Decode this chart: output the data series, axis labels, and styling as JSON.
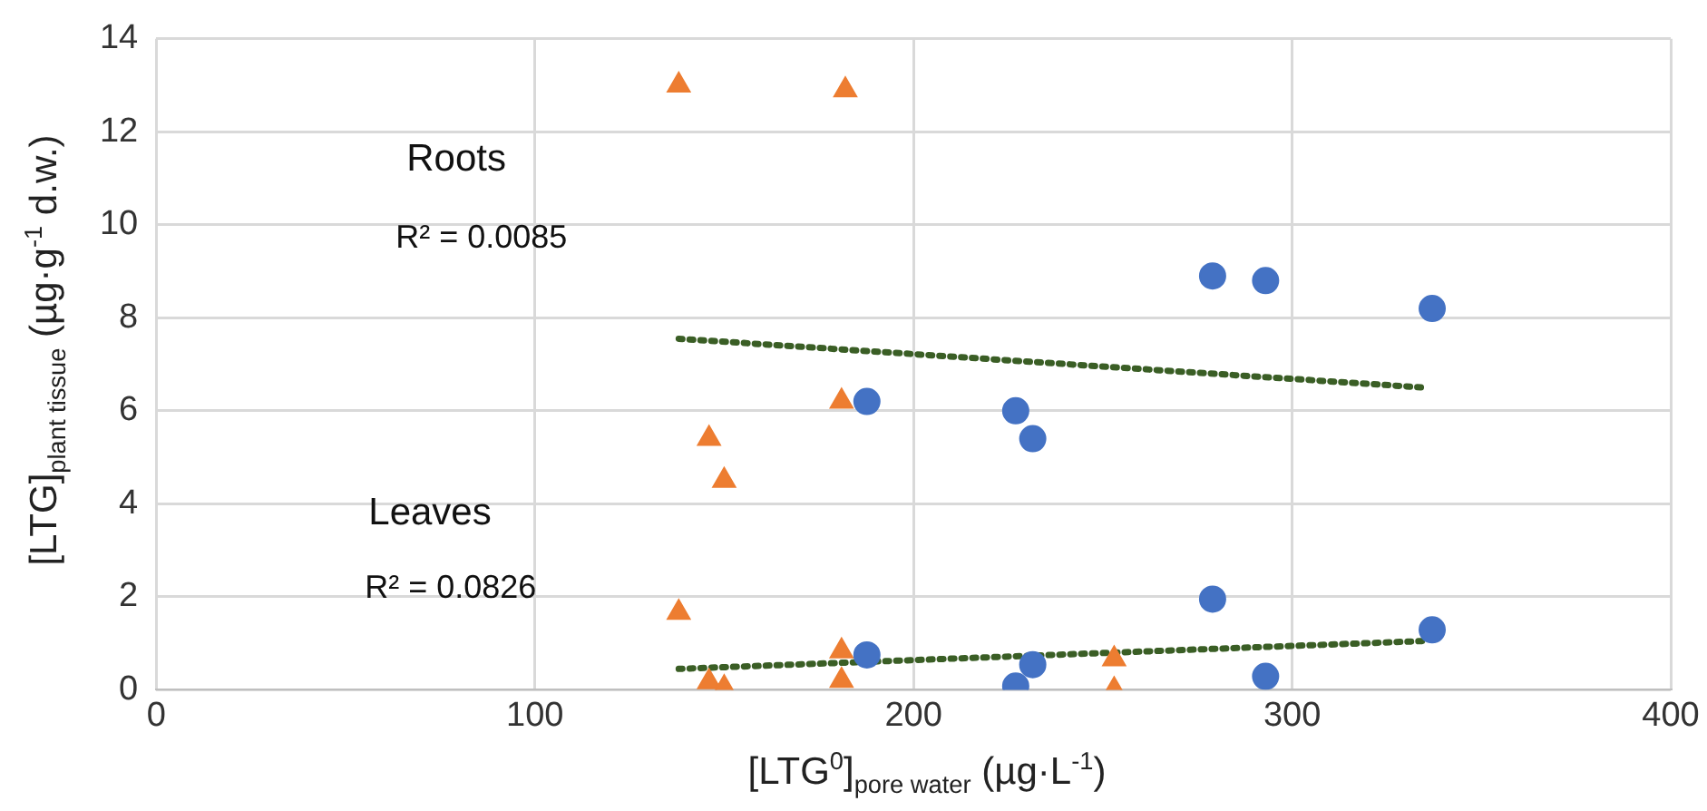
{
  "chart_data": {
    "type": "scatter",
    "xlabel": "[LTG$^{0}$]$_{pore water}$ (µg·L$^{-1}$)",
    "ylabel": "[LTG]$_{plant tissue}$ (µg·g$^{-1}$ d.w.)",
    "xlim": [
      0,
      400
    ],
    "xticks": [
      0,
      100,
      200,
      300,
      400
    ],
    "ylim": [
      0,
      14
    ],
    "yticks": [
      0,
      2,
      4,
      6,
      8,
      10,
      12,
      14
    ],
    "grid": true,
    "legend": false,
    "series": [
      {
        "marker": "circle",
        "color": "#4472c4",
        "x": [
          187.7,
          227,
          231.5,
          279,
          293,
          337,
          187.7,
          227,
          231.5,
          279,
          293,
          337
        ],
        "values": [
          6.2,
          6.0,
          5.4,
          8.9,
          8.8,
          8.2,
          0.75,
          0.08,
          0.54,
          1.95,
          0.29,
          1.29
        ]
      },
      {
        "marker": "triangle",
        "color": "#ed7d31",
        "x": [
          138,
          182,
          181,
          146,
          150,
          138,
          146,
          150,
          181,
          181,
          253,
          253
        ],
        "values": [
          13.0,
          12.9,
          6.2,
          5.4,
          4.5,
          1.66,
          0.17,
          0.04,
          0.83,
          0.2,
          0.66,
          0.0
        ]
      },
      {
        "type": "line",
        "marker": "none",
        "line_style": "dotted",
        "color": "#3a5e25",
        "x": [
          138,
          335
        ],
        "values": [
          7.55,
          6.5
        ]
      },
      {
        "type": "line",
        "marker": "none",
        "line_style": "dotted",
        "color": "#3a5e25",
        "x": [
          138,
          335
        ],
        "values": [
          0.45,
          1.05
        ]
      }
    ],
    "annotations": [
      "Roots",
      "R² = 0.0085",
      "Leaves",
      "R² = 0.0826"
    ]
  }
}
